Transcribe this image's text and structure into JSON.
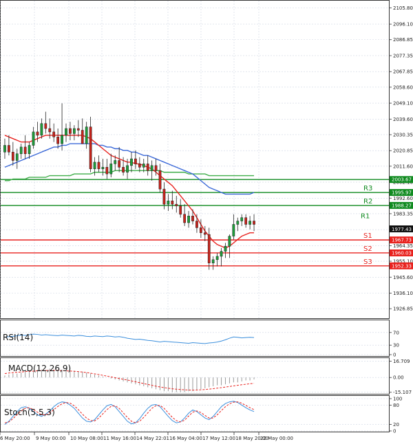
{
  "chart_data": [
    {
      "type": "candlestick",
      "panel": "price",
      "ylim": [
        1922,
        2108
      ],
      "y_ticks": [
        "2105.80",
        "2096.10",
        "2086.85",
        "2077.35",
        "2067.85",
        "2058.60",
        "2049.10",
        "2039.60",
        "2030.35",
        "2020.85",
        "2011.60",
        "2002.10",
        "1992.60",
        "1983.35",
        "1973.85",
        "1964.35",
        "1955.10",
        "1945.60",
        "1936.10",
        "1926.85"
      ],
      "x_ticks": [
        "6 May 20:00",
        "9 May 00:00",
        "10 May 08:00",
        "11 May 16:00",
        "14 May 22:01",
        "16 May 04:00",
        "17 May 12:00",
        "18 May 20:00",
        "22 May 00:00"
      ],
      "candles": [
        {
          "o": 2020,
          "h": 2028,
          "l": 2016,
          "c": 2024
        },
        {
          "o": 2024,
          "h": 2030,
          "l": 2018,
          "c": 2020
        },
        {
          "o": 2020,
          "h": 2026,
          "l": 2012,
          "c": 2015
        },
        {
          "o": 2015,
          "h": 2022,
          "l": 2010,
          "c": 2019
        },
        {
          "o": 2019,
          "h": 2025,
          "l": 2016,
          "c": 2023
        },
        {
          "o": 2023,
          "h": 2030,
          "l": 2016,
          "c": 2019
        },
        {
          "o": 2019,
          "h": 2026,
          "l": 2016,
          "c": 2024
        },
        {
          "o": 2024,
          "h": 2035,
          "l": 2022,
          "c": 2032
        },
        {
          "o": 2032,
          "h": 2038,
          "l": 2026,
          "c": 2030
        },
        {
          "o": 2030,
          "h": 2040,
          "l": 2028,
          "c": 2037
        },
        {
          "o": 2037,
          "h": 2044,
          "l": 2031,
          "c": 2034
        },
        {
          "o": 2034,
          "h": 2040,
          "l": 2028,
          "c": 2032
        },
        {
          "o": 2032,
          "h": 2037,
          "l": 2026,
          "c": 2029
        },
        {
          "o": 2029,
          "h": 2034,
          "l": 2022,
          "c": 2025
        },
        {
          "o": 2025,
          "h": 2049,
          "l": 2021,
          "c": 2030
        },
        {
          "o": 2030,
          "h": 2037,
          "l": 2026,
          "c": 2034
        },
        {
          "o": 2034,
          "h": 2038,
          "l": 2027,
          "c": 2031
        },
        {
          "o": 2031,
          "h": 2036,
          "l": 2027,
          "c": 2034
        },
        {
          "o": 2034,
          "h": 2039,
          "l": 2029,
          "c": 2033
        },
        {
          "o": 2033,
          "h": 2040,
          "l": 2025,
          "c": 2025
        },
        {
          "o": 2025,
          "h": 2038,
          "l": 2022,
          "c": 2035
        },
        {
          "o": 2035,
          "h": 2041,
          "l": 2008,
          "c": 2010
        },
        {
          "o": 2010,
          "h": 2017,
          "l": 2006,
          "c": 2014
        },
        {
          "o": 2014,
          "h": 2018,
          "l": 2008,
          "c": 2010
        },
        {
          "o": 2010,
          "h": 2016,
          "l": 2006,
          "c": 2011
        },
        {
          "o": 2011,
          "h": 2016,
          "l": 2004,
          "c": 2007
        },
        {
          "o": 2007,
          "h": 2019,
          "l": 2005,
          "c": 2013
        },
        {
          "o": 2013,
          "h": 2018,
          "l": 2009,
          "c": 2015
        },
        {
          "o": 2015,
          "h": 2023,
          "l": 2008,
          "c": 2011
        },
        {
          "o": 2011,
          "h": 2017,
          "l": 2006,
          "c": 2008
        },
        {
          "o": 2008,
          "h": 2016,
          "l": 2004,
          "c": 2012
        },
        {
          "o": 2012,
          "h": 2020,
          "l": 2008,
          "c": 2016
        },
        {
          "o": 2016,
          "h": 2021,
          "l": 2010,
          "c": 2013
        },
        {
          "o": 2013,
          "h": 2017,
          "l": 2008,
          "c": 2011
        },
        {
          "o": 2011,
          "h": 2016,
          "l": 2008,
          "c": 2013
        },
        {
          "o": 2013,
          "h": 2018,
          "l": 2006,
          "c": 2009
        },
        {
          "o": 2009,
          "h": 2015,
          "l": 2003,
          "c": 2012
        },
        {
          "o": 2012,
          "h": 2016,
          "l": 2006,
          "c": 2009
        },
        {
          "o": 2009,
          "h": 2013,
          "l": 1996,
          "c": 1998
        },
        {
          "o": 1998,
          "h": 2002,
          "l": 1986,
          "c": 1989
        },
        {
          "o": 1989,
          "h": 1995,
          "l": 1985,
          "c": 1991
        },
        {
          "o": 1991,
          "h": 1997,
          "l": 1986,
          "c": 1989
        },
        {
          "o": 1989,
          "h": 1994,
          "l": 1984,
          "c": 1988
        },
        {
          "o": 1988,
          "h": 1992,
          "l": 1981,
          "c": 1983
        },
        {
          "o": 1983,
          "h": 1989,
          "l": 1976,
          "c": 1978
        },
        {
          "o": 1978,
          "h": 1985,
          "l": 1975,
          "c": 1982
        },
        {
          "o": 1982,
          "h": 1986,
          "l": 1977,
          "c": 1979
        },
        {
          "o": 1979,
          "h": 1983,
          "l": 1972,
          "c": 1975
        },
        {
          "o": 1975,
          "h": 1980,
          "l": 1969,
          "c": 1972
        },
        {
          "o": 1972,
          "h": 1976,
          "l": 1967,
          "c": 1971
        },
        {
          "o": 1971,
          "h": 1975,
          "l": 1950,
          "c": 1954
        },
        {
          "o": 1954,
          "h": 1958,
          "l": 1950,
          "c": 1956
        },
        {
          "o": 1956,
          "h": 1960,
          "l": 1952,
          "c": 1958
        },
        {
          "o": 1958,
          "h": 1963,
          "l": 1952,
          "c": 1961
        },
        {
          "o": 1961,
          "h": 1966,
          "l": 1957,
          "c": 1964
        },
        {
          "o": 1964,
          "h": 1971,
          "l": 1957,
          "c": 1970
        },
        {
          "o": 1970,
          "h": 1983,
          "l": 1968,
          "c": 1977
        },
        {
          "o": 1977,
          "h": 1981,
          "l": 1973,
          "c": 1979
        },
        {
          "o": 1979,
          "h": 1983,
          "l": 1976,
          "c": 1981
        },
        {
          "o": 1981,
          "h": 1983,
          "l": 1975,
          "c": 1977
        },
        {
          "o": 1977,
          "h": 1982,
          "l": 1974,
          "c": 1979
        },
        {
          "o": 1979,
          "h": 1983,
          "l": 1973,
          "c": 1977
        }
      ],
      "ma_fast": {
        "name": "MA fast",
        "color": "#e8211d",
        "values": [
          2030,
          2029,
          2028,
          2027,
          2026,
          2026,
          2026,
          2027,
          2028,
          2029,
          2030,
          2030,
          2030,
          2030,
          2030,
          2030,
          2030,
          2030,
          2030,
          2030,
          2029,
          2028,
          2026,
          2024,
          2022,
          2020,
          2018,
          2017,
          2016,
          2015,
          2014,
          2014,
          2013,
          2013,
          2012,
          2011,
          2010,
          2008,
          2006,
          2004,
          2002,
          2000,
          1997,
          1994,
          1991,
          1988,
          1985,
          1981,
          1977,
          1973,
          1970,
          1967,
          1965,
          1964,
          1963,
          1964,
          1966,
          1968,
          1970,
          1971,
          1972,
          1972
        ]
      },
      "ma_mid": {
        "name": "MA mid",
        "color": "#3a68d8",
        "values": [
          2011,
          2012,
          2013,
          2014,
          2015,
          2016,
          2017,
          2018,
          2019,
          2020,
          2021,
          2022,
          2023,
          2023,
          2024,
          2024,
          2025,
          2025,
          2025,
          2025,
          2025,
          2025,
          2025,
          2024,
          2024,
          2023,
          2023,
          2022,
          2022,
          2021,
          2021,
          2020,
          2020,
          2019,
          2018,
          2018,
          2017,
          2016,
          2015,
          2014,
          2013,
          2012,
          2011,
          2010,
          2009,
          2008,
          2007,
          2005,
          2003,
          2001,
          1999,
          1998,
          1997,
          1996,
          1995,
          1995,
          1995,
          1995,
          1995,
          1995,
          1995,
          1996
        ]
      },
      "ma_slow": {
        "name": "MA slow",
        "color": "#3fae49",
        "values": [
          2003,
          2003,
          2004,
          2004,
          2004,
          2004,
          2005,
          2005,
          2005,
          2005,
          2005,
          2006,
          2006,
          2006,
          2006,
          2006,
          2006,
          2007,
          2007,
          2007,
          2007,
          2007,
          2008,
          2008,
          2008,
          2008,
          2008,
          2009,
          2009,
          2009,
          2009,
          2009,
          2009,
          2009,
          2009,
          2009,
          2009,
          2009,
          2009,
          2008,
          2008,
          2008,
          2008,
          2008,
          2008,
          2007,
          2007,
          2007,
          2007,
          2007,
          2006,
          2006,
          2006,
          2006,
          2006,
          2006,
          2006,
          2006,
          2006,
          2006,
          2006,
          2006
        ]
      },
      "levels": [
        {
          "name": "",
          "value": 2003.67,
          "label": "2003.67",
          "color": "#0f8a1f"
        },
        {
          "name": "R3",
          "value": 1995.97,
          "label": "1995.97",
          "color": "#0f8a1f"
        },
        {
          "name": "R2",
          "value": 1988.27,
          "label": "1988.27",
          "color": "#0f8a1f"
        },
        {
          "name": "S1",
          "value": 1967.73,
          "label": "1967.73",
          "color": "#e8211d"
        },
        {
          "name": "S2",
          "value": 1960.03,
          "label": "1960.03",
          "color": "#e8211d"
        },
        {
          "name": "S3",
          "value": 1952.33,
          "label": "1952.33",
          "color": "#e8211d"
        }
      ],
      "r1_label": "R1",
      "last_price": "1977.43"
    },
    {
      "type": "line",
      "panel": "rsi",
      "title": "RSI(14)",
      "ylim": [
        0,
        100
      ],
      "y_ticks": [
        "70",
        "30",
        "0"
      ],
      "series": [
        {
          "name": "RSI",
          "color": "#3a8edc",
          "values": [
            55,
            57,
            58,
            60,
            62,
            61,
            63,
            65,
            64,
            62,
            63,
            62,
            61,
            60,
            62,
            61,
            60,
            59,
            61,
            60,
            58,
            57,
            59,
            58,
            57,
            59,
            58,
            56,
            57,
            55,
            52,
            50,
            48,
            49,
            47,
            45,
            44,
            42,
            40,
            42,
            41,
            40,
            39,
            38,
            37,
            36,
            38,
            37,
            36,
            35,
            37,
            38,
            40,
            43,
            47,
            52,
            56,
            55,
            53,
            54,
            55,
            54
          ]
        }
      ]
    },
    {
      "type": "line",
      "panel": "macd",
      "title": "MACD(12,26,9)",
      "ylim": [
        -16,
        17
      ],
      "y_ticks": [
        "16.709",
        "0.00",
        "-15.107"
      ],
      "histogram": [
        2,
        3,
        4,
        4,
        5,
        6,
        7,
        7,
        8,
        8,
        8,
        9,
        8,
        8,
        8,
        7,
        7,
        7,
        6,
        6,
        5,
        4,
        3,
        2,
        1,
        0,
        -1,
        -2,
        -3,
        -4,
        -5,
        -6,
        -7,
        -8,
        -9,
        -10,
        -11,
        -12,
        -13,
        -14,
        -14,
        -15,
        -15,
        -15,
        -15,
        -14,
        -14,
        -13,
        -12,
        -11,
        -10,
        -9,
        -8,
        -8,
        -7,
        -6,
        -5,
        -5,
        -4,
        -3,
        -3,
        -2
      ],
      "series": [
        {
          "name": "Signal",
          "color": "#e8211d",
          "values": [
            4,
            4.5,
            5,
            5.3,
            5.6,
            6,
            6.3,
            6.5,
            6.8,
            7,
            7.1,
            7.2,
            7.2,
            7.1,
            7,
            6.8,
            6.6,
            6.3,
            6,
            5.6,
            5,
            4.4,
            3.7,
            3,
            2.2,
            1.4,
            0.6,
            -0.2,
            -1,
            -1.8,
            -2.6,
            -3.5,
            -4.4,
            -5.3,
            -6.2,
            -7.1,
            -8,
            -8.9,
            -9.7,
            -10.4,
            -11,
            -11.5,
            -12,
            -12.3,
            -12.6,
            -12.8,
            -12.9,
            -12.8,
            -12.6,
            -12.3,
            -11.9,
            -11.4,
            -10.9,
            -10.4,
            -9.8,
            -9.2,
            -8.6,
            -8,
            -7.4,
            -6.9,
            -6.4,
            -6
          ]
        }
      ]
    },
    {
      "type": "line",
      "panel": "stoch",
      "title": "Stoch(5,5,3)",
      "ylim": [
        0,
        100
      ],
      "y_ticks": [
        "100",
        "80",
        "20",
        "0"
      ],
      "series": [
        {
          "name": "%K",
          "color": "#3a8edc",
          "values": [
            20,
            30,
            45,
            60,
            72,
            75,
            70,
            60,
            50,
            45,
            52,
            62,
            75,
            85,
            90,
            88,
            80,
            70,
            55,
            40,
            30,
            28,
            35,
            50,
            65,
            78,
            82,
            75,
            60,
            45,
            30,
            22,
            25,
            38,
            55,
            70,
            80,
            82,
            75,
            60,
            45,
            32,
            25,
            28,
            40,
            55,
            65,
            60,
            50,
            40,
            35,
            45,
            60,
            75,
            85,
            90,
            92,
            88,
            80,
            72,
            65,
            60
          ]
        },
        {
          "name": "%D",
          "color": "#e8211d",
          "values": [
            25,
            28,
            38,
            50,
            62,
            70,
            72,
            66,
            58,
            50,
            50,
            56,
            66,
            76,
            84,
            88,
            86,
            78,
            66,
            52,
            40,
            32,
            31,
            40,
            53,
            66,
            76,
            78,
            70,
            56,
            42,
            30,
            25,
            30,
            42,
            56,
            70,
            78,
            79,
            70,
            56,
            42,
            32,
            28,
            33,
            46,
            58,
            62,
            57,
            48,
            40,
            40,
            50,
            63,
            75,
            84,
            89,
            90,
            86,
            79,
            72,
            66
          ]
        }
      ]
    }
  ]
}
